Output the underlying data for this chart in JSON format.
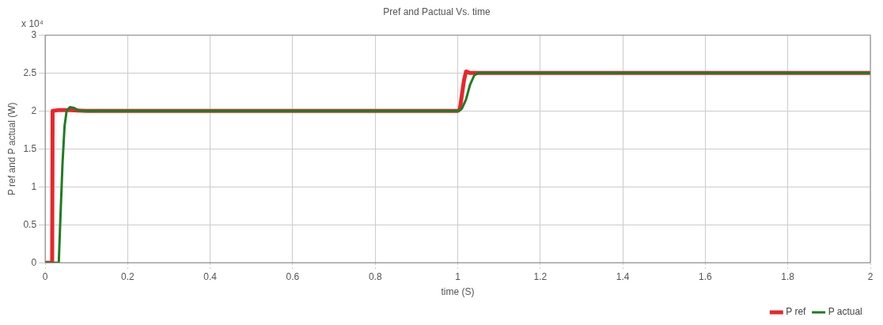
{
  "chart_data": {
    "type": "line",
    "title": "Pref and Pactual Vs. time",
    "xlabel": "time (S)",
    "ylabel": "P ref and P actual (W)",
    "annotations": [
      "x 10⁴"
    ],
    "series": [
      {
        "name": "P ref",
        "color": "#e8262b",
        "x": [
          0,
          0.017,
          0.018,
          0.03,
          0.06,
          0.1,
          1.0,
          1.005,
          1.015,
          1.02,
          1.03,
          2
        ],
        "values": [
          0,
          0,
          2,
          2.01,
          2.01,
          2,
          2,
          2.02,
          2.4,
          2.52,
          2.5,
          2.5
        ]
      },
      {
        "name": "P actual",
        "color": "#1e7d22",
        "x": [
          0,
          0.033,
          0.037,
          0.042,
          0.047,
          0.052,
          0.06,
          0.07,
          0.08,
          0.1,
          1.0,
          1.01,
          1.02,
          1.03,
          1.04,
          1.05,
          1.06,
          2
        ],
        "values": [
          0,
          0,
          0.6,
          1.3,
          1.8,
          2.0,
          2.05,
          2.04,
          2.01,
          2,
          2,
          2.03,
          2.15,
          2.35,
          2.47,
          2.5,
          2.5,
          2.5
        ]
      }
    ],
    "xlim": [
      0,
      2
    ],
    "xticks": [
      0,
      0.2,
      0.4,
      0.6,
      0.8,
      1,
      1.2,
      1.4,
      1.6,
      1.8,
      2
    ],
    "ylim": [
      0,
      3
    ],
    "yticks": [
      0,
      0.5,
      1,
      1.5,
      2,
      2.5,
      3
    ],
    "grid": true,
    "legend": "bottom right",
    "marker": "none",
    "line_style": "solid"
  }
}
